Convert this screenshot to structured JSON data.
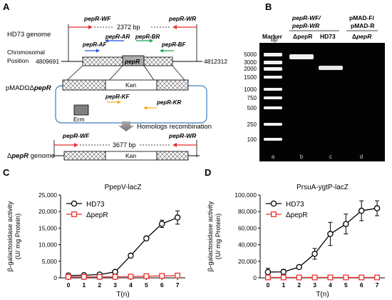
{
  "panels": {
    "A": "A",
    "B": "B",
    "C": "C",
    "D": "D"
  },
  "panelA": {
    "wf": "pepR-WF",
    "wr": "pepR-WR",
    "bp_top": "2372 bp",
    "genome_label": "HD73 genome",
    "ar": "pepR-AR",
    "br": "pepR-BR",
    "af": "pepR-AF",
    "bf": "pepR-BF",
    "chrom_label_1": "Chromosomal",
    "chrom_label_2": "Position",
    "pos_left": "4809691",
    "pos_right": "4812312",
    "gene": "pepR",
    "plasmid_label": "pMADΩΔpepR",
    "kan": "Kan",
    "kf": "pepR-KF",
    "kr": "pepR-KR",
    "erm": "Erm",
    "recomb": "Homologs recombination",
    "bp_bottom": "3677 bp",
    "mutant_label": "ΔpepR genome",
    "wf2": "pepR-WF",
    "wr2": "pepR-WR",
    "kan2": "Kan"
  },
  "panelB": {
    "bp": "bp",
    "marker": "Marker",
    "primer1_l1": "pepR-WF/",
    "primer1_l2": "pepR-WR",
    "primer2_l1": "pMAD-F/",
    "primer2_l2": "pMAD-R",
    "lane_b": "ΔpepR",
    "lane_c": "HD73",
    "lane_d": "ΔpepR",
    "ladder": [
      "5000",
      "3000",
      "2000",
      "1500",
      "1000",
      "750",
      "500",
      "250",
      "100"
    ],
    "bottom": [
      "a",
      "b",
      "c",
      "d"
    ]
  },
  "chart_data": [
    {
      "type": "line",
      "title": "PpepV-lacZ",
      "xlabel": "T(n)",
      "ylabel": "β-galactosidase activity (U/ mg Protein)",
      "x": [
        0,
        1,
        2,
        3,
        4,
        5,
        6,
        7
      ],
      "ylim": [
        0,
        25000
      ],
      "yticks": [
        "0",
        "5,000",
        "10,000",
        "15,000",
        "20,000",
        "25,000"
      ],
      "series": [
        {
          "name": "HD73",
          "values": [
            700,
            800,
            1000,
            1800,
            6700,
            11900,
            16300,
            18200
          ],
          "err": [
            300,
            300,
            300,
            400,
            600,
            600,
            1100,
            2000
          ],
          "color": "#000000"
        },
        {
          "name": "ΔpepR",
          "values": [
            300,
            300,
            300,
            300,
            400,
            500,
            600,
            700
          ],
          "err": [
            0,
            0,
            0,
            0,
            0,
            0,
            0,
            0
          ],
          "color": "#e8322d"
        }
      ],
      "legend": "top-left"
    },
    {
      "type": "line",
      "title": "PrsuA-ygtP-lacZ",
      "xlabel": "T(n)",
      "ylabel": "β-galactosidase activity (U/ mg Protein)",
      "x": [
        0,
        1,
        2,
        3,
        4,
        5,
        6,
        7
      ],
      "ylim": [
        0,
        100000
      ],
      "yticks": [
        "0",
        "20,000",
        "40,000",
        "60,000",
        "80,000",
        "100,000"
      ],
      "series": [
        {
          "name": "HD73",
          "values": [
            7000,
            7200,
            13000,
            29000,
            53000,
            65000,
            81000,
            84000
          ],
          "err": [
            4500,
            3000,
            2000,
            6500,
            14000,
            12000,
            12000,
            9000
          ],
          "color": "#000000"
        },
        {
          "name": "ΔpepR",
          "values": [
            500,
            500,
            500,
            500,
            500,
            500,
            500,
            500
          ],
          "err": [
            0,
            0,
            0,
            0,
            0,
            0,
            0,
            0
          ],
          "color": "#e8322d"
        }
      ],
      "legend": "top-left"
    }
  ]
}
